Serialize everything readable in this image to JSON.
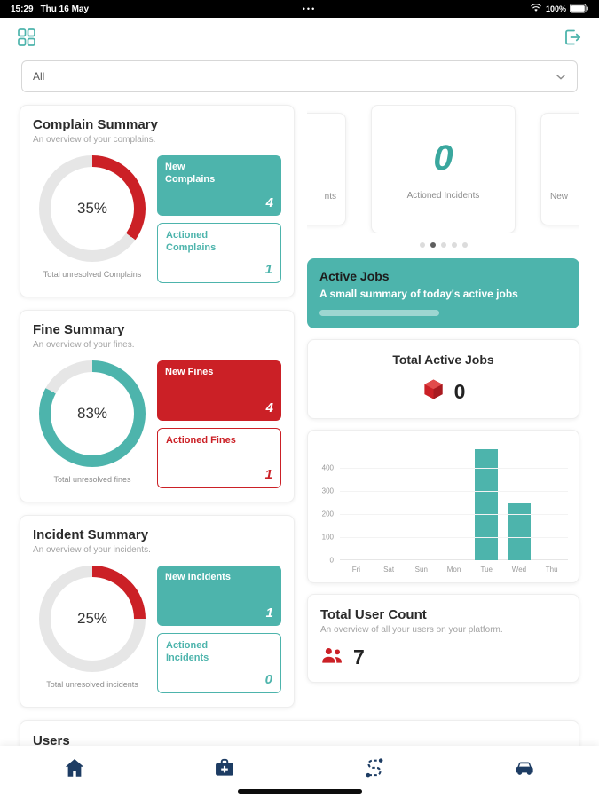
{
  "colors": {
    "teal": "#4db4ac",
    "red": "#cb2026",
    "navy": "#1d3c63",
    "gray_ring": "#e6e6e6"
  },
  "status_bar": {
    "time": "15:29",
    "date": "Thu 16 May",
    "center_dots": "•••",
    "battery_pct": "100%"
  },
  "icons": {
    "header_left": "apps-grid-icon",
    "header_right": "logout-icon",
    "filter": "chevron-down-icon",
    "status": [
      "wifi-icon",
      "battery-icon"
    ],
    "total_active_jobs": "cube-icon",
    "total_user_count": "people-icon",
    "nav": [
      "home-icon",
      "medical-kit-icon",
      "route-icon",
      "car-icon"
    ]
  },
  "filter": {
    "selected": "All"
  },
  "summaries": [
    {
      "title": "Complain Summary",
      "subtitle": "An overview of your complains.",
      "percent": 35,
      "percent_label": "35%",
      "arc_color": "#cb2026",
      "caption": "Total unresolved Complains",
      "new_box": {
        "label": "New Complains",
        "value": "4",
        "bg": "#4db4ac"
      },
      "actioned_box": {
        "label": "Actioned Complains",
        "value": "1",
        "color": "#4db4ac"
      }
    },
    {
      "title": "Fine Summary",
      "subtitle": "An overview of your fines.",
      "percent": 83,
      "percent_label": "83%",
      "arc_color": "#4db4ac",
      "caption": "Total unresolved fines",
      "new_box": {
        "label": "New Fines",
        "value": "4",
        "bg": "#cb2026"
      },
      "actioned_box": {
        "label": "Actioned Fines",
        "value": "1",
        "color": "#cb2026"
      }
    },
    {
      "title": "Incident Summary",
      "subtitle": "An overview of your incidents.",
      "percent": 25,
      "percent_label": "25%",
      "arc_color": "#cb2026",
      "caption": "Total unresolved incidents",
      "new_box": {
        "label": "New Incidents",
        "value": "1",
        "bg": "#4db4ac"
      },
      "actioned_box": {
        "label": "Actioned Incidents",
        "value": "0",
        "color": "#4db4ac"
      }
    }
  ],
  "carousel": {
    "left_partial_label": "nts",
    "center": {
      "value": "0",
      "label": "Actioned Incidents"
    },
    "right_partial_label": "New",
    "dots_total": 5,
    "active_dot": 1
  },
  "active_jobs": {
    "title": "Active Jobs",
    "subtitle": "A small summary of today's active jobs",
    "bg": "#4db4ac"
  },
  "total_active_jobs": {
    "title": "Total Active Jobs",
    "value": "0"
  },
  "chart_data": {
    "type": "bar",
    "title": "",
    "categories": [
      "Fri",
      "Sat",
      "Sun",
      "Mon",
      "Tue",
      "Wed",
      "Thu"
    ],
    "values": [
      0,
      0,
      0,
      0,
      480,
      245,
      0
    ],
    "xlabel": "",
    "ylabel": "",
    "ylim": [
      0,
      500
    ],
    "yticks": [
      400,
      300,
      200,
      100,
      0
    ],
    "grid": true,
    "legend": false,
    "bar_color": "#4db4ac"
  },
  "total_user_count": {
    "title": "Total User Count",
    "subtitle": "An overview of all your users on your platform.",
    "value": "7"
  },
  "users_section": {
    "title": "Users"
  }
}
